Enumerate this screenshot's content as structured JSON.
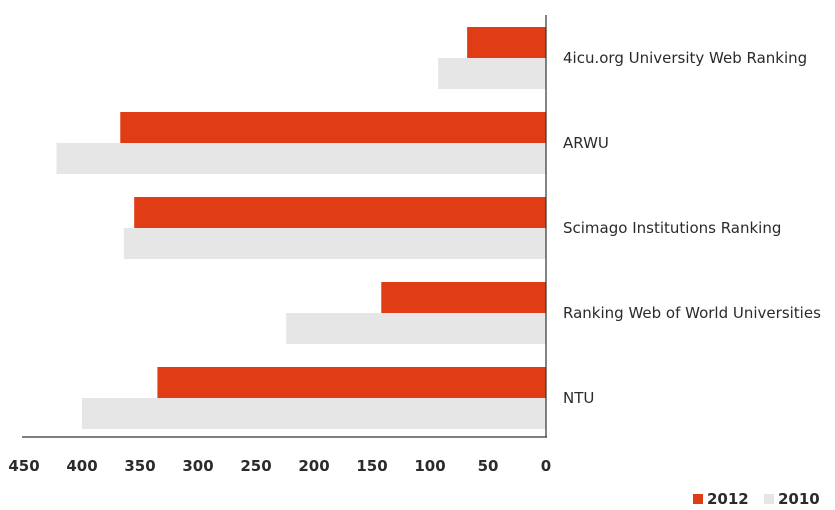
{
  "chart_data": {
    "type": "bar",
    "orientation": "horizontal",
    "x_axis": "reversed",
    "categories": [
      "4icu.org University Web Ranking",
      "ARWU",
      "Scimago Institutions Ranking",
      "Ranking Web of World Universities",
      "NTU"
    ],
    "series": [
      {
        "name": "2012",
        "color": "#e03c15",
        "values": [
          68,
          367,
          355,
          142,
          335
        ]
      },
      {
        "name": "2010",
        "color": "#e6e6e6",
        "values": [
          93,
          422,
          364,
          224,
          400
        ]
      }
    ],
    "xticks": [
      "450",
      "400",
      "350",
      "300",
      "250",
      "200",
      "150",
      "100",
      "50",
      "0"
    ],
    "xlim": [
      0,
      450
    ],
    "legend_position": "bottom-right",
    "grid": false
  }
}
